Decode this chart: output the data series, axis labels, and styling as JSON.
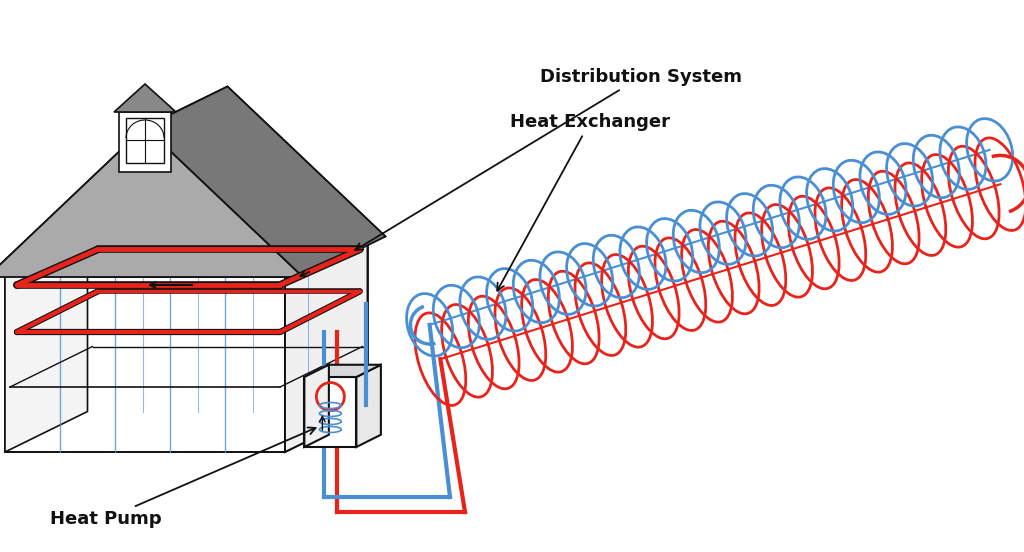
{
  "background_color": "#ffffff",
  "labels": {
    "distribution_system": "Distribution System",
    "heat_exchanger": "Heat Exchanger",
    "heat_pump": "Heat Pump"
  },
  "colors": {
    "red_pipe": "#e8231b",
    "blue_pipe": "#4a8fd4",
    "black": "#111111",
    "roof_dark": "#6a6a6a",
    "roof_mid": "#888888",
    "roof_light": "#aaaaaa",
    "wall_white": "#ffffff",
    "wall_light": "#f0f0f0",
    "wall_gray": "#e0e0e0"
  },
  "figsize": [
    10.24,
    5.52
  ],
  "dpi": 100
}
